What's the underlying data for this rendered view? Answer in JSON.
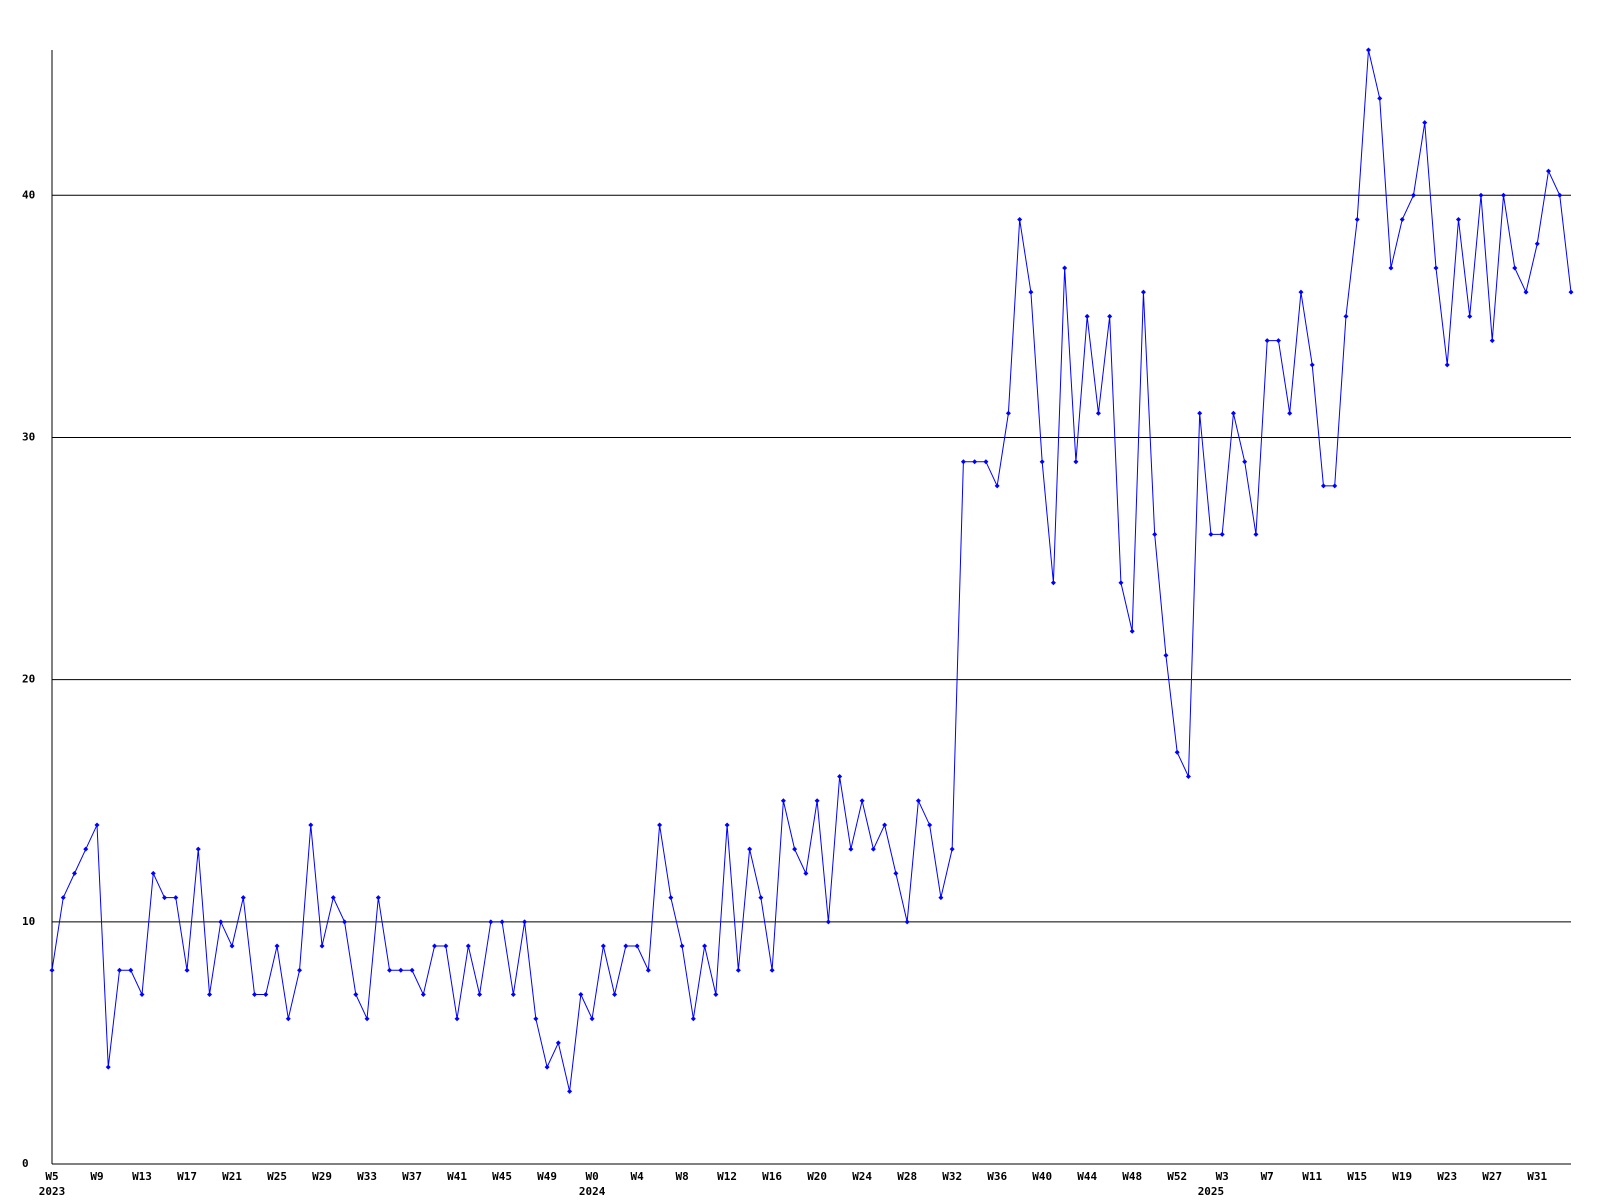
{
  "chart_data": {
    "type": "line",
    "categories": [
      "W5",
      null,
      null,
      null,
      "W9",
      null,
      null,
      null,
      "W13",
      null,
      null,
      null,
      "W17",
      null,
      null,
      null,
      "W21",
      null,
      null,
      null,
      "W25",
      null,
      null,
      null,
      "W29",
      null,
      null,
      null,
      "W33",
      null,
      null,
      null,
      "W37",
      null,
      null,
      null,
      "W41",
      null,
      null,
      null,
      "W45",
      null,
      null,
      null,
      "W49",
      null,
      null,
      null,
      "W0",
      null,
      null,
      null,
      "W4",
      null,
      null,
      null,
      "W8",
      null,
      null,
      null,
      "W12",
      null,
      null,
      null,
      "W16",
      null,
      null,
      null,
      "W20",
      null,
      null,
      null,
      "W24",
      null,
      null,
      null,
      "W28",
      null,
      null,
      null,
      "W32",
      null,
      null,
      null,
      "W36",
      null,
      null,
      null,
      "W40",
      null,
      null,
      null,
      "W44",
      null,
      null,
      null,
      "W48",
      null,
      null,
      null,
      "W52",
      null,
      null,
      null,
      "W3",
      null,
      null,
      null,
      "W7",
      null,
      null,
      null,
      "W11",
      null,
      null,
      null,
      "W15",
      null,
      null,
      null,
      "W19",
      null,
      null,
      null,
      "W23",
      null,
      null,
      null,
      "W27",
      null,
      null,
      null,
      "W31",
      null,
      null,
      null
    ],
    "years": [
      "2023",
      null,
      null,
      null,
      null,
      null,
      null,
      null,
      null,
      null,
      null,
      null,
      null,
      null,
      null,
      null,
      null,
      null,
      null,
      null,
      null,
      null,
      null,
      null,
      null,
      null,
      null,
      null,
      null,
      null,
      null,
      null,
      null,
      null,
      null,
      null,
      null,
      null,
      null,
      null,
      null,
      null,
      null,
      null,
      null,
      null,
      null,
      null,
      "2024",
      null,
      null,
      null,
      null,
      null,
      null,
      null,
      null,
      null,
      null,
      null,
      null,
      null,
      null,
      null,
      null,
      null,
      null,
      null,
      null,
      null,
      null,
      null,
      null,
      null,
      null,
      null,
      null,
      null,
      null,
      null,
      null,
      null,
      null,
      null,
      null,
      null,
      null,
      null,
      null,
      null,
      null,
      null,
      null,
      null,
      null,
      null,
      null,
      null,
      null,
      null,
      null,
      null,
      null,
      "2025",
      null,
      null,
      null,
      null,
      null,
      null,
      null,
      null,
      null,
      null,
      null,
      null,
      null,
      null,
      null,
      null,
      null,
      null,
      null,
      null,
      null,
      null,
      null,
      null,
      null,
      null,
      null,
      null,
      null,
      null,
      null,
      null,
      null,
      null
    ],
    "values": [
      8,
      11,
      12,
      13,
      14,
      4,
      8,
      8,
      7,
      12,
      11,
      11,
      8,
      13,
      7,
      10,
      9,
      11,
      7,
      7,
      9,
      6,
      8,
      14,
      9,
      11,
      10,
      7,
      6,
      11,
      8,
      8,
      8,
      7,
      9,
      9,
      6,
      9,
      7,
      10,
      10,
      7,
      10,
      6,
      4,
      5,
      3,
      7,
      6,
      9,
      7,
      9,
      9,
      8,
      14,
      11,
      9,
      6,
      9,
      7,
      14,
      8,
      13,
      11,
      8,
      15,
      13,
      12,
      15,
      10,
      16,
      13,
      15,
      13,
      14,
      12,
      10,
      15,
      14,
      11,
      13,
      29,
      29,
      29,
      28,
      31,
      39,
      36,
      29,
      24,
      37,
      29,
      35,
      31,
      35,
      24,
      22,
      36,
      26,
      21,
      17,
      16,
      31,
      26,
      26,
      31,
      29,
      26,
      34,
      34,
      31,
      36,
      33,
      28,
      28,
      35,
      39,
      46,
      44,
      37,
      39,
      40,
      43,
      37,
      33,
      39,
      35,
      40,
      34,
      40,
      37,
      36,
      38,
      41,
      40,
      36
    ],
    "color": "#0000ff",
    "ylim": [
      0,
      46
    ],
    "yticks": [
      0,
      10,
      20,
      30,
      40
    ],
    "grid": true,
    "markers": true
  }
}
